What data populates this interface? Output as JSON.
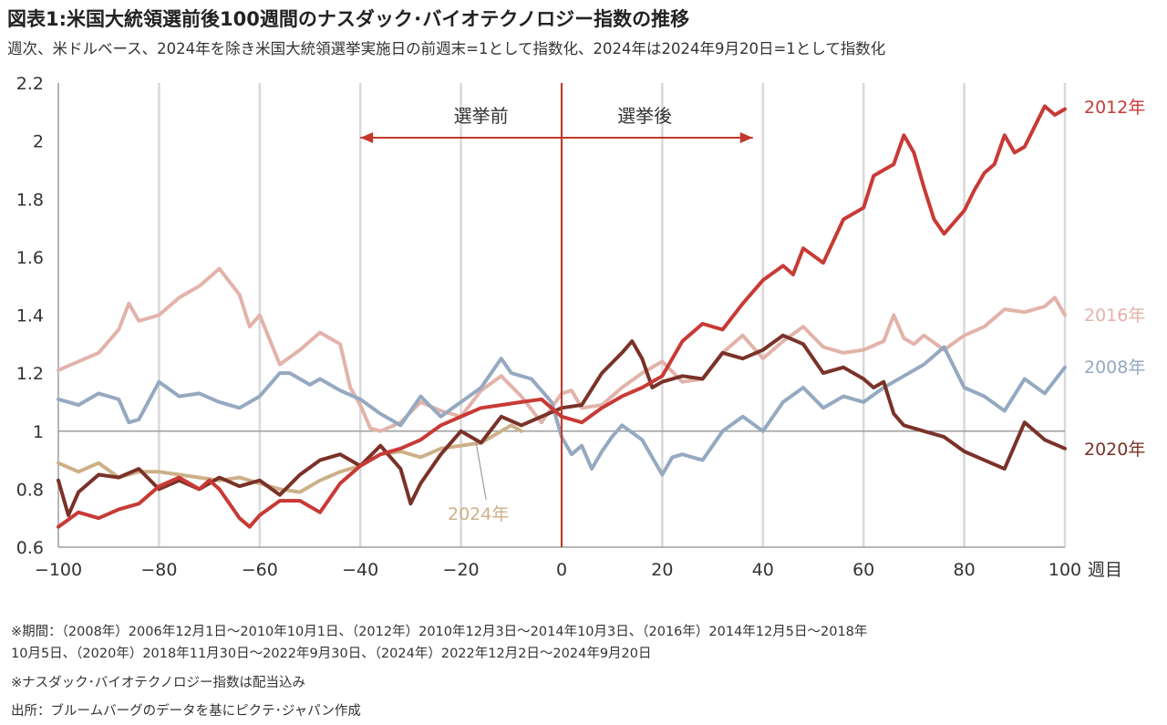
{
  "header": {
    "title": "図表1:米国大統領選前後100週間のナスダック･バイオテクノロジー指数の推移",
    "subtitle": "週次、米ドルベース、2024年を除き米国大統領選挙実施日の前週末=1として指数化、2024年は2024年9月20日=1として指数化"
  },
  "notes": {
    "period_line1": "※期間：（2008年）2006年12月1日～2010年10月1日、（2012年）2010年12月3日～2014年10月3日、（2016年）2014年12月5日～2018年",
    "period_line2": "10月5日、（2020年）2018年11月30日～2022年9月30日、（2024年）2022年12月2日～2024年9月20日",
    "dividend_note": "※ナスダック･バイオテクノロジー指数は配当込み",
    "source": "出所：ブルームバーグのデータを基にピクテ･ジャパン作成"
  },
  "colors": {
    "s2012": "#C83A36",
    "s2016": "#E2B3AA",
    "s2008": "#95A9C1",
    "s2020": "#7A3228",
    "s2024": "#CDB088",
    "election_line": "#C0392B",
    "arrow": "#C0392B",
    "grid": "#D9D9D9",
    "baseline": "#9E9E9E"
  },
  "chart_data": {
    "type": "line",
    "xlabel": "週目",
    "xlim": [
      -100,
      100
    ],
    "ylim": [
      0.6,
      2.2
    ],
    "x_ticks": [
      -100,
      -80,
      -60,
      -40,
      -20,
      0,
      20,
      40,
      60,
      80,
      100
    ],
    "x_tick_labels": [
      "−100",
      "−80",
      "−60",
      "−40",
      "−20",
      "0",
      "20",
      "40",
      "60",
      "80",
      "100"
    ],
    "y_ticks": [
      0.6,
      0.8,
      1.0,
      1.2,
      1.4,
      1.6,
      1.8,
      2.0,
      2.2
    ],
    "y_tick_labels": [
      "0.6",
      "0.8",
      "1",
      "1.2",
      "1.4",
      "1.6",
      "1.8",
      "2",
      "2.2"
    ],
    "grid": "vertical",
    "reference_line": {
      "x": 0
    },
    "annotations": {
      "before": "選挙前",
      "after": "選挙後",
      "before_from": 0,
      "before_to": -40,
      "after_from": 0,
      "after_to": 38
    },
    "series": [
      {
        "name": "2008年",
        "x": [
          -100,
          -96,
          -92,
          -88,
          -86,
          -84,
          -80,
          -76,
          -72,
          -68,
          -64,
          -60,
          -56,
          -54,
          -50,
          -48,
          -44,
          -40,
          -36,
          -32,
          -28,
          -24,
          -20,
          -16,
          -12,
          -10,
          -6,
          -2,
          0,
          2,
          4,
          6,
          8,
          10,
          12,
          16,
          20,
          22,
          24,
          28,
          32,
          36,
          40,
          44,
          48,
          52,
          56,
          60,
          64,
          68,
          72,
          76,
          80,
          84,
          88,
          92,
          96,
          100
        ],
        "values": [
          1.11,
          1.09,
          1.13,
          1.11,
          1.03,
          1.04,
          1.17,
          1.12,
          1.13,
          1.1,
          1.08,
          1.12,
          1.2,
          1.2,
          1.16,
          1.18,
          1.14,
          1.11,
          1.06,
          1.02,
          1.12,
          1.05,
          1.1,
          1.15,
          1.25,
          1.2,
          1.18,
          1.1,
          0.98,
          0.92,
          0.95,
          0.87,
          0.93,
          0.98,
          1.02,
          0.97,
          0.85,
          0.91,
          0.92,
          0.9,
          1.0,
          1.05,
          1.0,
          1.1,
          1.15,
          1.08,
          1.12,
          1.1,
          1.15,
          1.19,
          1.23,
          1.29,
          1.15,
          1.12,
          1.07,
          1.18,
          1.13,
          1.22
        ]
      },
      {
        "name": "2012年",
        "x": [
          -100,
          -96,
          -92,
          -88,
          -84,
          -80,
          -76,
          -72,
          -70,
          -68,
          -66,
          -64,
          -62,
          -60,
          -56,
          -52,
          -48,
          -44,
          -40,
          -36,
          -32,
          -28,
          -24,
          -20,
          -16,
          -12,
          -8,
          -4,
          0,
          4,
          8,
          12,
          16,
          20,
          24,
          28,
          32,
          36,
          40,
          44,
          46,
          48,
          52,
          56,
          60,
          62,
          64,
          66,
          68,
          70,
          72,
          74,
          76,
          78,
          80,
          82,
          84,
          86,
          88,
          90,
          92,
          94,
          96,
          98,
          100
        ],
        "values": [
          0.67,
          0.72,
          0.7,
          0.73,
          0.75,
          0.81,
          0.84,
          0.8,
          0.83,
          0.8,
          0.75,
          0.7,
          0.67,
          0.71,
          0.76,
          0.76,
          0.72,
          0.82,
          0.88,
          0.92,
          0.94,
          0.97,
          1.02,
          1.05,
          1.08,
          1.09,
          1.1,
          1.11,
          1.05,
          1.03,
          1.08,
          1.12,
          1.15,
          1.19,
          1.31,
          1.37,
          1.35,
          1.44,
          1.52,
          1.57,
          1.54,
          1.63,
          1.58,
          1.73,
          1.77,
          1.88,
          1.9,
          1.92,
          2.02,
          1.96,
          1.84,
          1.73,
          1.68,
          1.72,
          1.76,
          1.83,
          1.89,
          1.92,
          2.02,
          1.96,
          1.98,
          2.05,
          2.12,
          2.09,
          2.11
        ]
      },
      {
        "name": "2016年",
        "x": [
          -100,
          -96,
          -92,
          -88,
          -86,
          -84,
          -80,
          -76,
          -72,
          -68,
          -64,
          -62,
          -60,
          -56,
          -52,
          -48,
          -44,
          -42,
          -40,
          -38,
          -36,
          -32,
          -28,
          -24,
          -20,
          -16,
          -12,
          -8,
          -4,
          0,
          2,
          4,
          8,
          12,
          16,
          20,
          24,
          28,
          32,
          36,
          40,
          44,
          48,
          52,
          56,
          60,
          64,
          66,
          68,
          70,
          72,
          76,
          80,
          84,
          88,
          92,
          96,
          98,
          100
        ],
        "values": [
          1.21,
          1.24,
          1.27,
          1.35,
          1.44,
          1.38,
          1.4,
          1.46,
          1.5,
          1.56,
          1.47,
          1.36,
          1.4,
          1.23,
          1.28,
          1.34,
          1.3,
          1.15,
          1.09,
          1.01,
          1.0,
          1.03,
          1.1,
          1.07,
          1.05,
          1.14,
          1.19,
          1.12,
          1.03,
          1.13,
          1.14,
          1.08,
          1.09,
          1.15,
          1.2,
          1.24,
          1.17,
          1.18,
          1.27,
          1.33,
          1.25,
          1.31,
          1.36,
          1.29,
          1.27,
          1.28,
          1.31,
          1.4,
          1.32,
          1.3,
          1.33,
          1.28,
          1.33,
          1.36,
          1.42,
          1.41,
          1.43,
          1.46,
          1.4
        ]
      },
      {
        "name": "2020年",
        "x": [
          -100,
          -98,
          -96,
          -92,
          -88,
          -84,
          -80,
          -76,
          -72,
          -68,
          -64,
          -60,
          -56,
          -52,
          -48,
          -44,
          -40,
          -36,
          -32,
          -30,
          -28,
          -24,
          -20,
          -16,
          -12,
          -8,
          -4,
          0,
          4,
          8,
          12,
          14,
          16,
          18,
          20,
          24,
          28,
          32,
          36,
          40,
          44,
          48,
          52,
          56,
          60,
          62,
          64,
          66,
          68,
          72,
          76,
          80,
          84,
          88,
          92,
          96,
          100
        ],
        "values": [
          0.83,
          0.71,
          0.79,
          0.85,
          0.84,
          0.87,
          0.8,
          0.83,
          0.8,
          0.84,
          0.81,
          0.83,
          0.78,
          0.85,
          0.9,
          0.92,
          0.88,
          0.95,
          0.87,
          0.75,
          0.82,
          0.92,
          1.0,
          0.96,
          1.05,
          1.02,
          1.05,
          1.08,
          1.09,
          1.2,
          1.27,
          1.31,
          1.25,
          1.15,
          1.17,
          1.19,
          1.18,
          1.27,
          1.25,
          1.28,
          1.33,
          1.3,
          1.2,
          1.22,
          1.18,
          1.15,
          1.17,
          1.06,
          1.02,
          1.0,
          0.98,
          0.93,
          0.9,
          0.87,
          1.03,
          0.97,
          0.94
        ]
      },
      {
        "name": "2024年",
        "x": [
          -100,
          -96,
          -92,
          -88,
          -84,
          -80,
          -76,
          -72,
          -68,
          -64,
          -60,
          -56,
          -52,
          -48,
          -44,
          -40,
          -36,
          -32,
          -28,
          -24,
          -20,
          -16,
          -12,
          -10,
          -8
        ],
        "values": [
          0.89,
          0.86,
          0.89,
          0.84,
          0.86,
          0.86,
          0.85,
          0.84,
          0.83,
          0.84,
          0.82,
          0.8,
          0.79,
          0.83,
          0.86,
          0.88,
          0.92,
          0.93,
          0.91,
          0.94,
          0.95,
          0.96,
          1.0,
          1.02,
          1.0
        ]
      }
    ]
  },
  "labels": {
    "s2012": "2012年",
    "s2016": "2016年",
    "s2008": "2008年",
    "s2020": "2020年",
    "s2024": "2024年"
  }
}
